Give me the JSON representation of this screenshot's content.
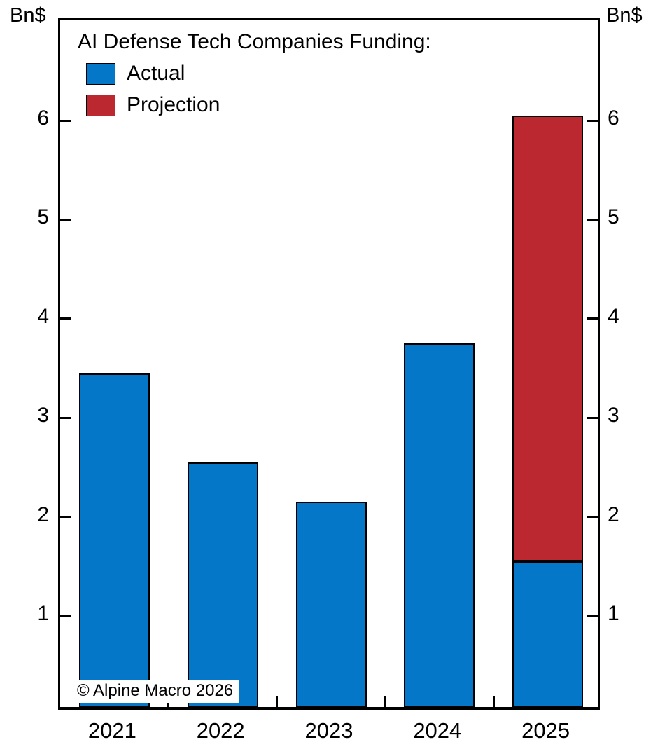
{
  "chart_data": {
    "type": "bar",
    "stacked": true,
    "title": "AI Defense Tech Companies Funding:",
    "categories": [
      "2021",
      "2022",
      "2023",
      "2024",
      "2025"
    ],
    "series": [
      {
        "name": "Actual",
        "color": "#0477c9",
        "values": [
          3.4,
          2.5,
          2.1,
          3.7,
          1.5
        ]
      },
      {
        "name": "Projection",
        "color": "#bb2830",
        "values": [
          0,
          0,
          0,
          0,
          4.5
        ]
      }
    ],
    "totals": {
      "2025": 6.0
    },
    "ylabel_left": "Bn$",
    "ylabel_right": "Bn$",
    "yticks": [
      1,
      2,
      3,
      4,
      5,
      6
    ],
    "ylim": [
      0,
      7
    ],
    "grid": false,
    "legend_position": "top-left",
    "axis_color": "#000000",
    "watermark": "© Alpine Macro 2026"
  }
}
